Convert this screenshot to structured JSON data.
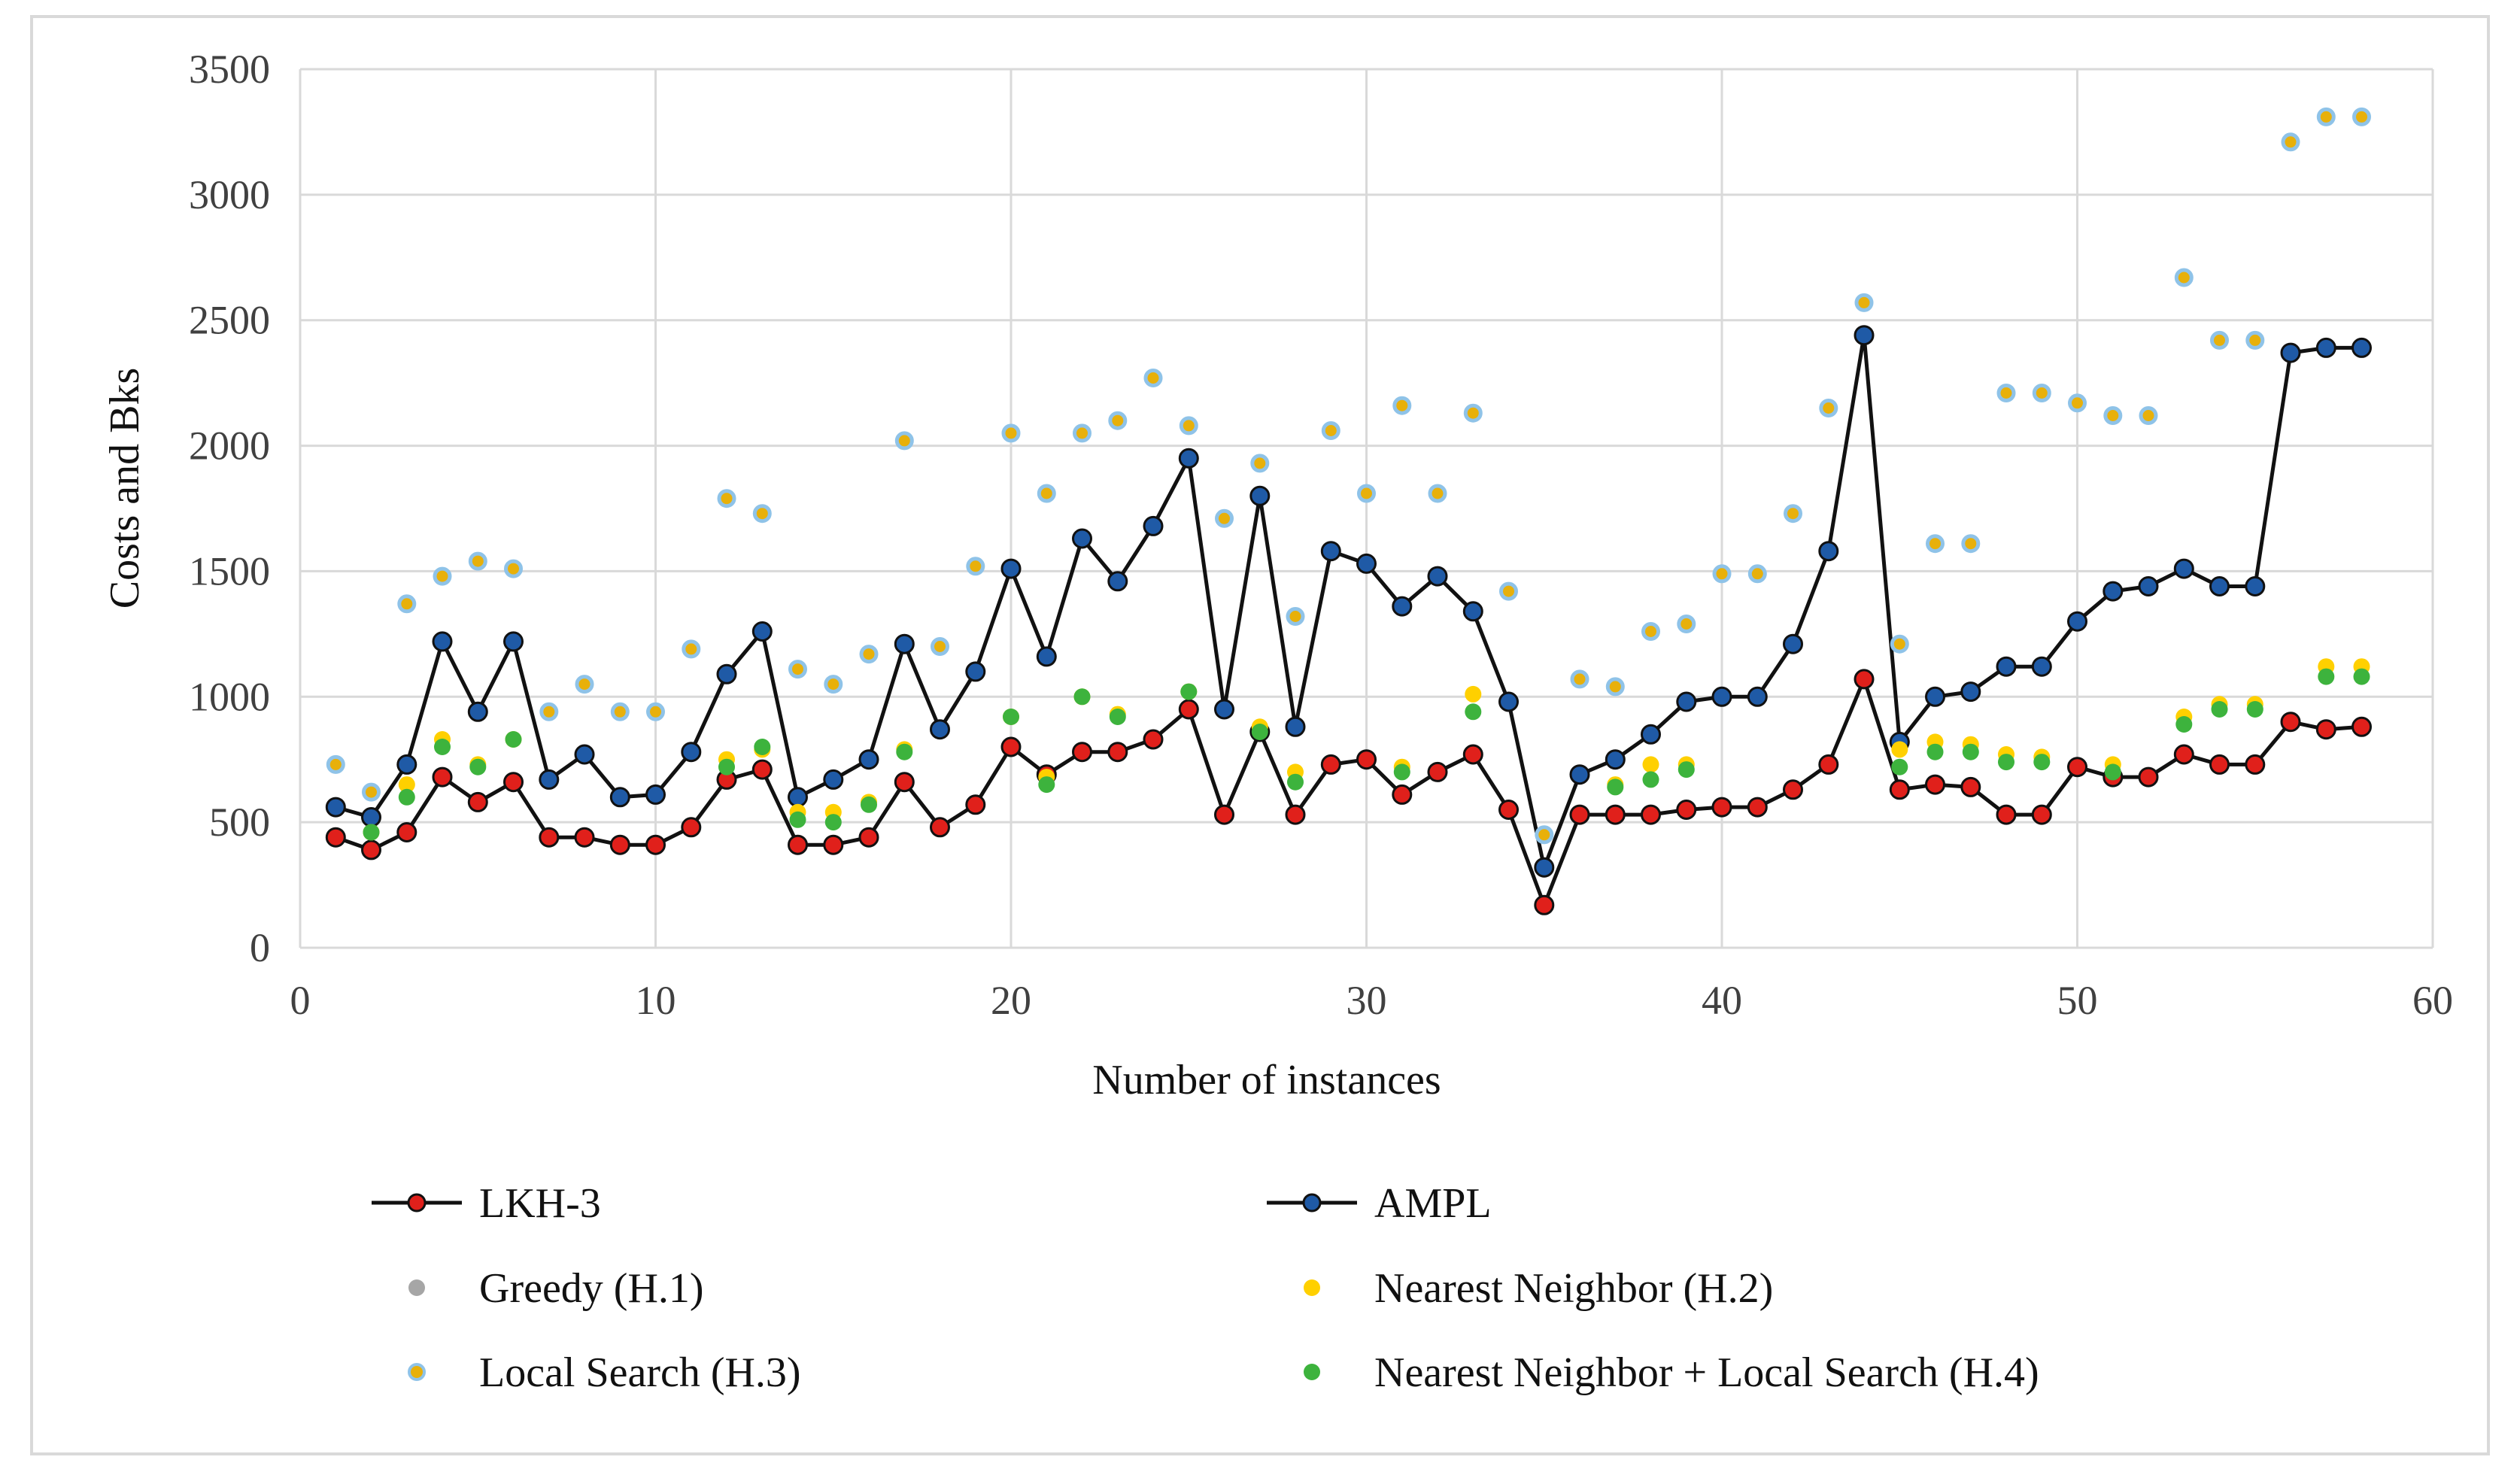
{
  "chart_data": {
    "type": "line",
    "xlabel": "Number of instances",
    "ylabel": "Costs and Bks",
    "xlim": [
      0,
      60
    ],
    "ylim": [
      0,
      3500
    ],
    "xticks": [
      0,
      10,
      20,
      30,
      40,
      50,
      60
    ],
    "yticks": [
      0,
      500,
      1000,
      1500,
      2000,
      2500,
      3000,
      3500
    ],
    "grid": true,
    "legend_position": "bottom",
    "colors": {
      "lkh": "#e0201b",
      "ampl": "#1f5aa6",
      "greedy": "#a6a6a6",
      "nn": "#ffd000",
      "ls_fill": "#e8b00a",
      "ls_ring": "#8fc3e8",
      "nnls": "#3db33d",
      "line": "#111111",
      "grid": "#d9d9d9"
    },
    "series": [
      {
        "key": "lkh",
        "name": "LKH-3",
        "style": "line-marker",
        "values": [
          440,
          390,
          460,
          680,
          580,
          660,
          440,
          440,
          410,
          410,
          480,
          670,
          710,
          410,
          410,
          440,
          660,
          480,
          570,
          800,
          690,
          780,
          780,
          830,
          950,
          530,
          860,
          530,
          730,
          750,
          610,
          700,
          770,
          550,
          170,
          530,
          530,
          530,
          550,
          560,
          560,
          630,
          730,
          1070,
          630,
          650,
          640,
          530,
          530,
          720,
          680,
          680,
          770,
          730,
          730,
          900,
          870,
          880
        ]
      },
      {
        "key": "ampl",
        "name": "AMPL",
        "style": "line-marker",
        "values": [
          560,
          520,
          730,
          1220,
          940,
          1220,
          670,
          770,
          600,
          610,
          780,
          1090,
          1260,
          600,
          670,
          750,
          1210,
          870,
          1100,
          1510,
          1160,
          1630,
          1460,
          1680,
          1950,
          950,
          1800,
          880,
          1580,
          1530,
          1360,
          1480,
          1340,
          980,
          320,
          690,
          750,
          850,
          980,
          1000,
          1000,
          1210,
          1580,
          2440,
          820,
          1000,
          1020,
          1120,
          1120,
          1300,
          1420,
          1440,
          1510,
          1440,
          1440,
          2370,
          2390,
          2390
        ]
      },
      {
        "key": "greedy",
        "name": "Greedy (H.1)",
        "style": "marker",
        "values": [
          730,
          620,
          1370,
          1480,
          1540,
          1510,
          940,
          1050,
          940,
          940,
          1190,
          1790,
          1730,
          1110,
          1050,
          1170,
          2020,
          1200,
          1520,
          2050,
          1810,
          2050,
          2100,
          2270,
          2080,
          1710,
          1930,
          1320,
          2060,
          1810,
          2160,
          1810,
          2130,
          1420,
          450,
          1070,
          1040,
          1260,
          1290,
          1490,
          1490,
          1730,
          2150,
          2570,
          1210,
          1610,
          1610,
          2210,
          2210,
          2170,
          2120,
          2120,
          2670,
          2420,
          2420,
          3210,
          3310,
          3310
        ]
      },
      {
        "key": "nn",
        "name": "Nearest Neighbor (H.2)",
        "style": "marker",
        "values": [
          null,
          460,
          650,
          830,
          730,
          830,
          null,
          null,
          null,
          null,
          null,
          750,
          790,
          540,
          540,
          580,
          790,
          null,
          null,
          920,
          680,
          1000,
          930,
          null,
          1020,
          null,
          880,
          700,
          null,
          null,
          720,
          null,
          1010,
          null,
          null,
          null,
          650,
          730,
          730,
          null,
          null,
          null,
          null,
          null,
          790,
          820,
          810,
          770,
          760,
          null,
          730,
          null,
          920,
          970,
          970,
          null,
          1120,
          1120
        ]
      },
      {
        "key": "ls",
        "name": "Local Search (H.3)",
        "style": "marker-ring",
        "values": [
          730,
          620,
          1370,
          1480,
          1540,
          1510,
          940,
          1050,
          940,
          940,
          1190,
          1790,
          1730,
          1110,
          1050,
          1170,
          2020,
          1200,
          1520,
          2050,
          1810,
          2050,
          2100,
          2270,
          2080,
          1710,
          1930,
          1320,
          2060,
          1810,
          2160,
          1810,
          2130,
          1420,
          450,
          1070,
          1040,
          1260,
          1290,
          1490,
          1490,
          1730,
          2150,
          2570,
          1210,
          1610,
          1610,
          2210,
          2210,
          2170,
          2120,
          2120,
          2670,
          2420,
          2420,
          3210,
          3310,
          3310
        ]
      },
      {
        "key": "nnls",
        "name": "Nearest Neighbor + Local Search (H.4)",
        "style": "marker",
        "values": [
          null,
          460,
          600,
          800,
          720,
          830,
          null,
          null,
          null,
          null,
          null,
          720,
          800,
          510,
          500,
          570,
          780,
          null,
          null,
          920,
          650,
          1000,
          920,
          null,
          1020,
          null,
          860,
          660,
          null,
          null,
          700,
          null,
          940,
          null,
          null,
          null,
          640,
          670,
          710,
          null,
          null,
          null,
          null,
          null,
          720,
          780,
          780,
          740,
          740,
          null,
          700,
          null,
          890,
          950,
          950,
          null,
          1080,
          1080
        ]
      }
    ]
  }
}
